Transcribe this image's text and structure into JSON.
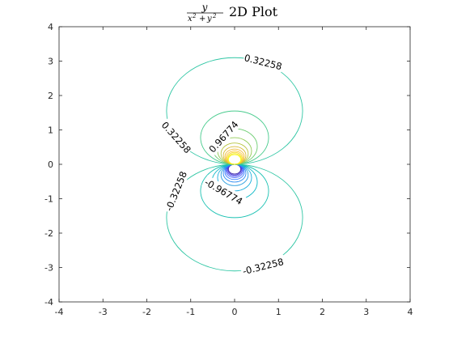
{
  "figure": {
    "title": {
      "numerator": "y",
      "denominator_x": "x",
      "denominator_y": "y",
      "exponent": "2",
      "plus": "+",
      "suffix": "2D Plot"
    },
    "background": "#ffffff",
    "axes_color": "#262626"
  },
  "chart_data": {
    "type": "contour",
    "function": "y/(x^2+y^2)",
    "xlim": [
      -4,
      4
    ],
    "ylim": [
      -4,
      4
    ],
    "x_ticks": [
      -4,
      -3,
      -2,
      -1,
      0,
      1,
      2,
      3,
      4
    ],
    "y_ticks": [
      -4,
      -3,
      -2,
      -1,
      0,
      1,
      2,
      3,
      4
    ],
    "x_tick_labels": [
      "-4",
      "-3",
      "-2",
      "-1",
      "0",
      "1",
      "2",
      "3",
      "4"
    ],
    "y_tick_labels": [
      "-4",
      "-3",
      "-2",
      "-1",
      "0",
      "1",
      "2",
      "3",
      "4"
    ],
    "grid": false,
    "box": true,
    "colormap": "parula",
    "levels": [
      -3.54838,
      -3.2258,
      -2.90322,
      -2.58064,
      -2.25806,
      -1.93548,
      -1.6129,
      -1.29032,
      -0.96774,
      -0.64516,
      -0.32258,
      0.32258,
      0.64516,
      0.96774,
      1.29032,
      1.6129,
      1.93548,
      2.25806,
      2.58064,
      2.90322,
      3.2258,
      3.54838
    ],
    "level_colors": {
      "-3.54838": "#3e26a8",
      "-3.22580": "#4435d0",
      "-2.90322": "#4748f0",
      "-2.58064": "#3d5ffb",
      "-2.25806": "#2f77ff",
      "-1.93548": "#2d8cf1",
      "-1.61290": "#2a9dde",
      "-1.29032": "#19addc",
      "-0.96774": "#0ab8c7",
      "-0.64516": "#1ac1b2",
      "-0.32258": "#2fc6a4",
      "0.32258": "#2fc6a4",
      "0.64516": "#48cb8d",
      "0.96774": "#6ccd71",
      "1.29032": "#93cb57",
      "1.61290": "#b8c541",
      "1.93548": "#d7bc36",
      "2.25806": "#efb93c",
      "2.58064": "#fcc539",
      "2.90322": "#f7d92d",
      "3.22580": "#f5ea20",
      "3.54838": "#f9fb15"
    },
    "labels": [
      {
        "text": "0.32258",
        "x": 0.65,
        "y": 2.97,
        "rotation": 0
      },
      {
        "text": "0.32258",
        "x": -1.33,
        "y": 0.78,
        "rotation": 0
      },
      {
        "text": "0.96774",
        "x": -0.25,
        "y": 0.8,
        "rotation": 0
      },
      {
        "text": "-0.32258",
        "x": -1.33,
        "y": -0.78,
        "rotation": 0
      },
      {
        "text": "-0.96774",
        "x": -0.25,
        "y": -0.8,
        "rotation": 0
      },
      {
        "text": "-0.32258",
        "x": 0.65,
        "y": -2.97,
        "rotation": 0
      }
    ]
  }
}
